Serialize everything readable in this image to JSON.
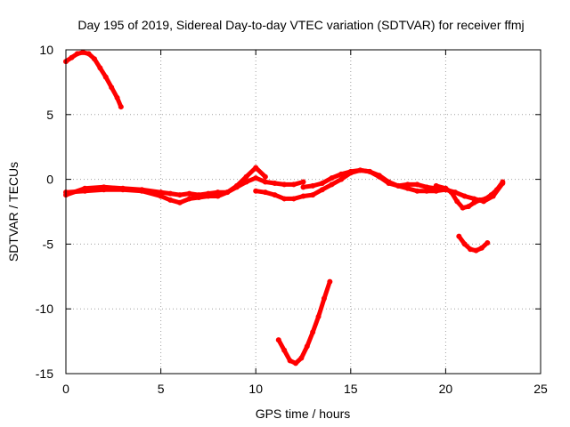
{
  "chart_data": {
    "type": "scatter",
    "title": "Day 195 of 2019, Sidereal Day-to-day VTEC variation (SDTVAR) for receiver ffmj",
    "xlabel": "GPS time / hours",
    "ylabel": "SDTVAR / TECUs",
    "xlim": [
      0,
      25
    ],
    "ylim": [
      -15,
      10
    ],
    "xticks": [
      0,
      5,
      10,
      15,
      20,
      25
    ],
    "yticks": [
      -15,
      -10,
      -5,
      0,
      5,
      10
    ],
    "xtick_labels": [
      "0",
      "5",
      "10",
      "15",
      "20",
      "25"
    ],
    "ytick_labels": [
      "-15",
      "-10",
      "-5",
      "0",
      "5",
      "10"
    ],
    "grid": true,
    "color": "#ff0000",
    "series": [
      {
        "name": "arc-1",
        "x": [
          0,
          0.3,
          0.6,
          0.9,
          1.2,
          1.5,
          1.8,
          2.1,
          2.4,
          2.7,
          2.9
        ],
        "y": [
          9.1,
          9.4,
          9.7,
          9.8,
          9.7,
          9.3,
          8.6,
          7.9,
          7.1,
          6.3,
          5.6
        ]
      },
      {
        "name": "arc-2",
        "x": [
          0,
          1,
          2,
          3,
          4,
          5,
          5.5,
          6,
          6.5,
          7,
          7.5,
          8,
          8.5,
          9,
          9.5,
          10,
          10.5
        ],
        "y": [
          -1.0,
          -0.9,
          -0.8,
          -0.8,
          -0.9,
          -1.3,
          -1.6,
          -1.8,
          -1.5,
          -1.4,
          -1.3,
          -1.3,
          -1.0,
          -0.5,
          0.2,
          0.9,
          0.2
        ]
      },
      {
        "name": "arc-3",
        "x": [
          0,
          1,
          2,
          3,
          4,
          5,
          5.5,
          6,
          6.5,
          7,
          7.5,
          8,
          8.5,
          9,
          9.5,
          10,
          10.5,
          11,
          11.5,
          12,
          12.5
        ],
        "y": [
          -1.2,
          -0.7,
          -0.6,
          -0.7,
          -0.8,
          -1.0,
          -1.1,
          -1.2,
          -1.1,
          -1.2,
          -1.1,
          -1.0,
          -1.0,
          -0.6,
          -0.2,
          0.1,
          -0.2,
          -0.3,
          -0.4,
          -0.4,
          -0.2
        ]
      },
      {
        "name": "arc-4",
        "x": [
          10,
          10.5,
          11,
          11.5,
          12,
          12.5,
          13,
          13.5,
          14,
          14.5,
          15,
          15.5,
          16,
          16.5,
          17,
          17.5,
          18,
          18.5,
          19,
          19.5,
          20
        ],
        "y": [
          -0.9,
          -1.0,
          -1.2,
          -1.5,
          -1.5,
          -1.3,
          -1.2,
          -0.8,
          -0.4,
          0.0,
          0.5,
          0.7,
          0.6,
          0.3,
          -0.2,
          -0.5,
          -0.7,
          -0.9,
          -0.9,
          -0.9,
          -0.8
        ]
      },
      {
        "name": "arc-5",
        "x": [
          12.5,
          13,
          13.5,
          14,
          14.5,
          15,
          15.5,
          16,
          16.5,
          17,
          17.5,
          18,
          18.5,
          19,
          19.5,
          20,
          20.5,
          21,
          21.5,
          22,
          22.5,
          23
        ],
        "y": [
          -0.6,
          -0.5,
          -0.3,
          0.1,
          0.4,
          0.6,
          0.7,
          0.6,
          0.2,
          -0.3,
          -0.5,
          -0.4,
          -0.4,
          -0.6,
          -0.7,
          -0.8,
          -1.0,
          -1.3,
          -1.5,
          -1.7,
          -1.3,
          -0.3
        ]
      },
      {
        "name": "arc-6",
        "x": [
          19.5,
          20,
          20.3,
          20.6,
          20.9,
          21.2,
          21.5,
          21.8,
          22.1,
          22.4,
          22.7,
          23
        ],
        "y": [
          -0.5,
          -0.7,
          -1.0,
          -1.7,
          -2.2,
          -2.1,
          -1.8,
          -1.6,
          -1.5,
          -1.2,
          -0.8,
          -0.2
        ]
      },
      {
        "name": "arc-7",
        "x": [
          20.7,
          21.0,
          21.3,
          21.6,
          21.9,
          22.2
        ],
        "y": [
          -4.4,
          -5.0,
          -5.4,
          -5.5,
          -5.3,
          -4.9
        ]
      },
      {
        "name": "arc-8",
        "x": [
          11.2,
          11.5,
          11.8,
          12.1,
          12.4,
          12.7,
          13.0,
          13.3,
          13.6,
          13.9
        ],
        "y": [
          -12.4,
          -13.2,
          -14.0,
          -14.2,
          -13.8,
          -12.9,
          -11.8,
          -10.6,
          -9.2,
          -7.9
        ]
      }
    ]
  }
}
